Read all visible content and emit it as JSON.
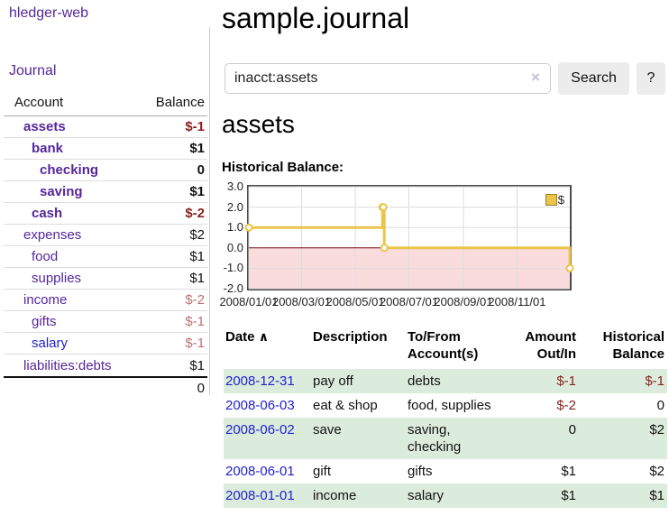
{
  "app": {
    "brand": "hledger-web",
    "nav": {
      "journal": "Journal"
    }
  },
  "sidebar": {
    "header": {
      "account": "Account",
      "balance": "Balance"
    },
    "accounts": [
      {
        "name": "assets",
        "depth": 1,
        "bold": true,
        "balance": "$-1",
        "neg": "strong"
      },
      {
        "name": "bank",
        "depth": 2,
        "bold": true,
        "balance": "$1"
      },
      {
        "name": "checking",
        "depth": 3,
        "bold": true,
        "balance": "0"
      },
      {
        "name": "saving",
        "depth": 3,
        "bold": true,
        "balance": "$1"
      },
      {
        "name": "cash",
        "depth": 2,
        "bold": true,
        "balance": "$-2",
        "neg": "strong"
      },
      {
        "name": "expenses",
        "depth": 1,
        "bold": false,
        "balance": "$2"
      },
      {
        "name": "food",
        "depth": 2,
        "bold": false,
        "balance": "$1"
      },
      {
        "name": "supplies",
        "depth": 2,
        "bold": false,
        "balance": "$1"
      },
      {
        "name": "income",
        "depth": 1,
        "bold": false,
        "balance": "$-2",
        "neg": "muted"
      },
      {
        "name": "gifts",
        "depth": 2,
        "bold": false,
        "balance": "$-1",
        "neg": "muted"
      },
      {
        "name": "salary",
        "depth": 2,
        "bold": false,
        "balance": "$-1",
        "neg": "muted",
        "name_style": "blue"
      },
      {
        "name": "liabilities:debts",
        "depth": 1,
        "bold": false,
        "balance": "$1"
      }
    ],
    "total": "0"
  },
  "header": {
    "title": "sample.journal"
  },
  "search": {
    "value": "inacct:assets",
    "clear_icon": "×",
    "button": "Search",
    "help_button": "?"
  },
  "account_page": {
    "title": "assets",
    "chart_heading": "Historical Balance:"
  },
  "chart_data": {
    "type": "line",
    "step": true,
    "title": "Historical Balance:",
    "series": [
      {
        "name": "$",
        "x": [
          "2008-01-01",
          "2008-06-01",
          "2008-06-02",
          "2008-06-03",
          "2008-12-31"
        ],
        "y": [
          1,
          2,
          2,
          0,
          -1
        ]
      }
    ],
    "xrange": [
      "2008-01-01",
      "2008-12-31"
    ],
    "ylim": [
      -2,
      3
    ],
    "yticks": [
      "3.0",
      "2.0",
      "1.0",
      "0.0",
      "-1.0",
      "-2.0"
    ],
    "ytick_values": [
      3,
      2,
      1,
      0,
      -1,
      -2
    ],
    "xticks": [
      "2008/01/01",
      "2008/03/01",
      "2008/05/01",
      "2008/07/01",
      "2008/09/01",
      "2008/11/01"
    ],
    "legend": {
      "label": "$",
      "position": "top-right"
    },
    "grid": true,
    "line_color": "#eac54a",
    "negative_region_color": "#fadcdc",
    "zero_line_color": "#7d0e0e"
  },
  "register": {
    "columns": [
      "Date",
      "Description",
      "To/From\nAccount(s)",
      "Amount\nOut/In",
      "Historical\nBalance"
    ],
    "sort_icon": "∧",
    "rows": [
      {
        "date": "2008-12-31",
        "description": "pay off",
        "accounts": "debts",
        "amount": "$-1",
        "amount_neg": true,
        "balance": "$-1",
        "balance_neg": true
      },
      {
        "date": "2008-06-03",
        "description": "eat & shop",
        "accounts": "food, supplies",
        "amount": "$-2",
        "amount_neg": true,
        "balance": "0",
        "balance_neg": false
      },
      {
        "date": "2008-06-02",
        "description": "save",
        "accounts": "saving, checking",
        "amount": "0",
        "amount_neg": false,
        "balance": "$2",
        "balance_neg": false
      },
      {
        "date": "2008-06-01",
        "description": "gift",
        "accounts": "gifts",
        "amount": "$1",
        "amount_neg": false,
        "balance": "$2",
        "balance_neg": false
      },
      {
        "date": "2008-01-01",
        "description": "income",
        "accounts": "salary",
        "amount": "$1",
        "amount_neg": false,
        "balance": "$1",
        "balance_neg": false
      }
    ]
  }
}
